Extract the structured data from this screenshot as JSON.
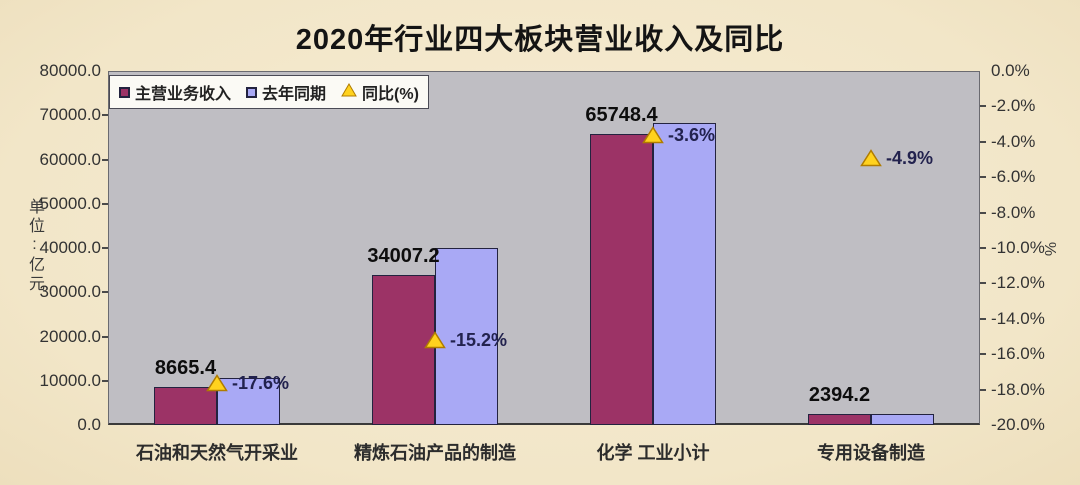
{
  "page": {
    "background_color": "#F2E6C8",
    "plot_background_color": "#BFBEC3"
  },
  "chart_data": {
    "type": "bar",
    "title": "2020年行业四大板块营业收入及同比",
    "categories": [
      "石油和天然气开采业",
      "精炼石油产品的制造",
      "化学 工业小计",
      "专用设备制造"
    ],
    "series": [
      {
        "name": "主营业务收入",
        "render": "bar",
        "color": "#9C3366",
        "axis": "left",
        "values": [
          8665.4,
          34007.2,
          65748.4,
          2394.2
        ],
        "labels": [
          "8665.4",
          "34007.2",
          "65748.4",
          "2394.2"
        ]
      },
      {
        "name": "去年同期",
        "render": "bar",
        "color": "#A9A9F5",
        "axis": "left",
        "values_estimated_from_bar_heights": [
          10516,
          40103,
          68204,
          2518
        ],
        "labels": []
      },
      {
        "name": "同比(%)",
        "render": "point-triangle",
        "color": "#FFD21E",
        "axis": "right",
        "values": [
          -17.6,
          -15.2,
          -3.6,
          -4.9
        ],
        "labels": [
          "-17.6%",
          "-15.2%",
          "-3.6%",
          "-4.9%"
        ]
      }
    ],
    "left_axis": {
      "title": "单位:亿元",
      "min": 0,
      "max": 80000,
      "step": 10000,
      "tick_labels": [
        "80000.0",
        "70000.0",
        "60000.0",
        "50000.0",
        "40000.0",
        "30000.0",
        "20000.0",
        "10000.0",
        "0.0"
      ]
    },
    "right_axis": {
      "title": "%",
      "min": -20,
      "max": 0,
      "step": 2,
      "tick_labels": [
        "0.0%",
        "-2.0%",
        "-4.0%",
        "-6.0%",
        "-8.0%",
        "-10.0%",
        "-12.0%",
        "-14.0%",
        "-16.0%",
        "-18.0%",
        "-20.0%"
      ]
    },
    "legend": {
      "position": "top-left-inside",
      "items": [
        {
          "label": "主营业务收入",
          "marker": "square",
          "color": "#9C3366"
        },
        {
          "label": "去年同期",
          "marker": "square",
          "color": "#A9A9F5"
        },
        {
          "label": "同比(%)",
          "marker": "triangle",
          "color": "#FFD21E"
        }
      ]
    },
    "grid": false,
    "bar_value_label_color": "#0D0D0D",
    "pct_label_color": "#22224E"
  }
}
